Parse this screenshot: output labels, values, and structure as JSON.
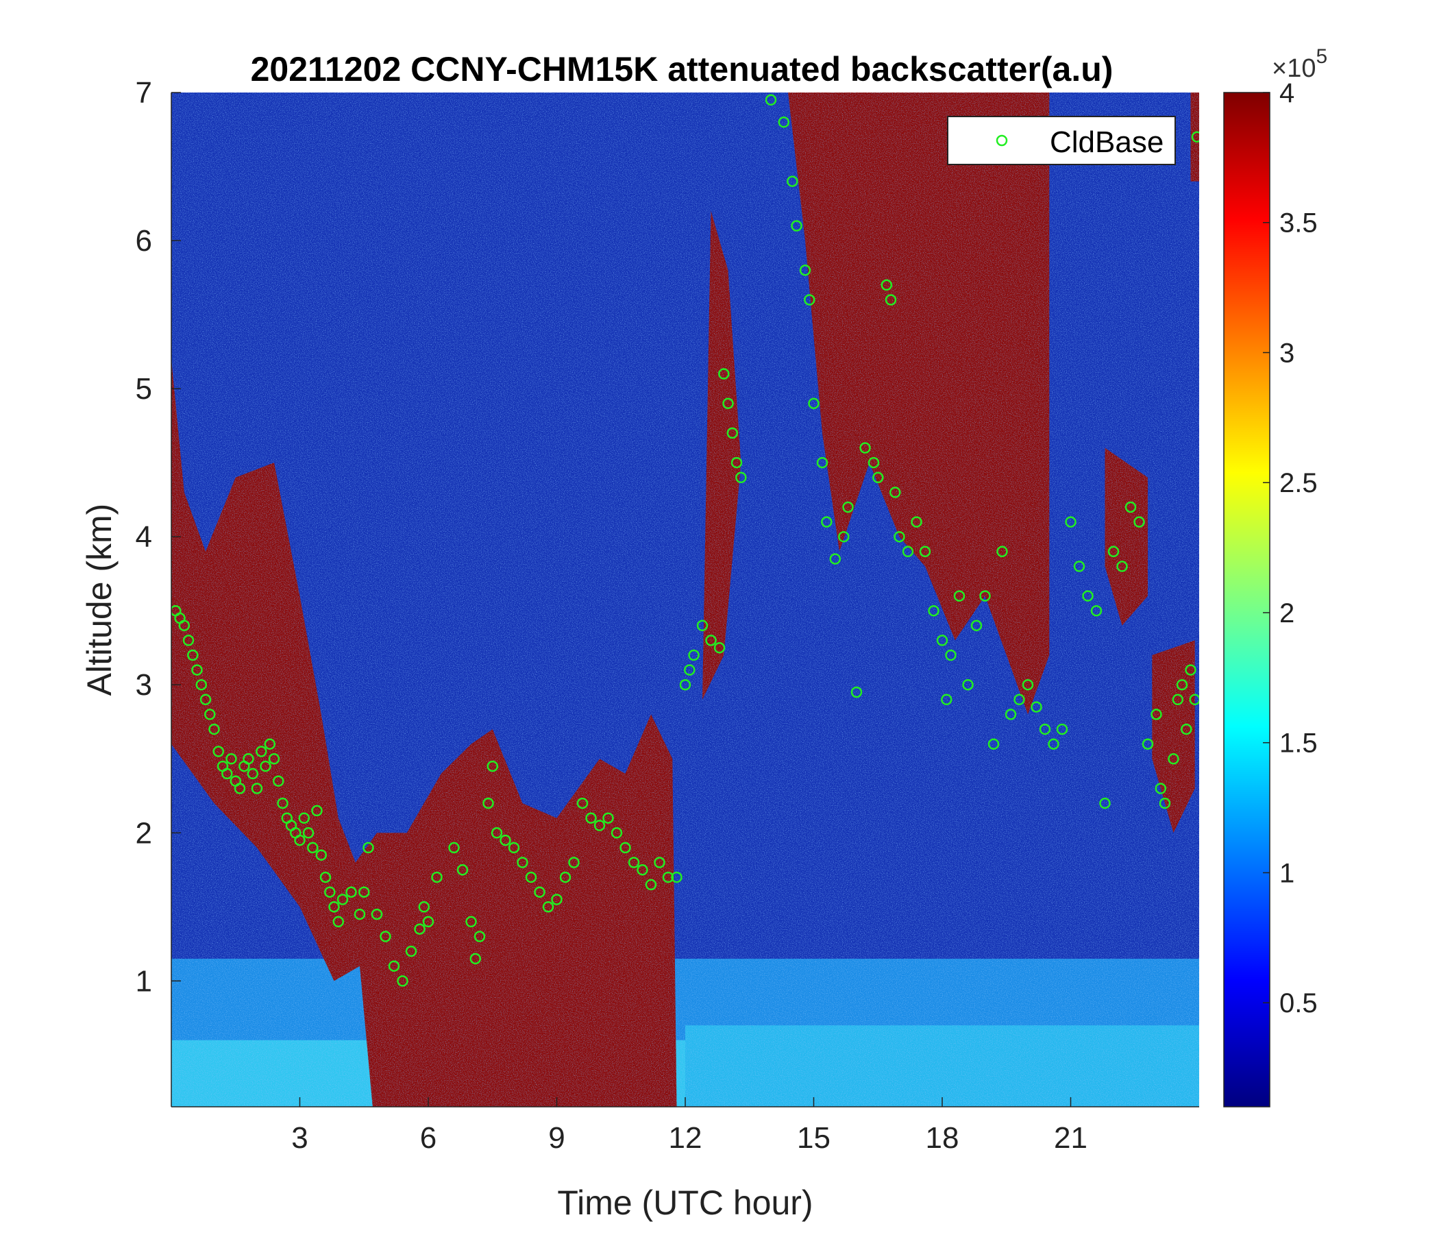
{
  "chart_data": {
    "type": "heatmap",
    "title": "20211202 CCNY-CHM15K attenuated backscatter(a.u)",
    "xlabel": "Time (UTC hour)",
    "ylabel": "Altitude (km)",
    "xlim": [
      0.0,
      24.0
    ],
    "ylim": [
      0.15,
      7.0
    ],
    "x_ticks": [
      3,
      6,
      9,
      12,
      15,
      18,
      21
    ],
    "x_tick_labels": [
      "3",
      "6",
      "9",
      "12",
      "15",
      "18",
      "21"
    ],
    "y_ticks": [
      1,
      2,
      3,
      4,
      5,
      6,
      7
    ],
    "y_tick_labels": [
      "1",
      "2",
      "3",
      "4",
      "5",
      "6",
      "7"
    ],
    "colorbar": {
      "colormap": "jet",
      "clim": [
        0.1,
        4.0
      ],
      "ticks": [
        0.5,
        1,
        1.5,
        2,
        2.5,
        3,
        3.5,
        4
      ],
      "tick_labels": [
        "0.5",
        "1",
        "1.5",
        "2",
        "2.5",
        "3",
        "3.5",
        "4"
      ],
      "multiplier_prefix": "×10",
      "multiplier_exponent": "5"
    },
    "legend": {
      "placement": "top-right",
      "entries": [
        {
          "label": "CldBase",
          "marker": "circle",
          "color": "#22ee22"
        }
      ]
    },
    "series": [
      {
        "name": "CldBase",
        "marker": "o",
        "color": "#22ee22",
        "points": [
          [
            0.1,
            3.5
          ],
          [
            0.2,
            3.45
          ],
          [
            0.3,
            3.4
          ],
          [
            0.4,
            3.3
          ],
          [
            0.5,
            3.2
          ],
          [
            0.6,
            3.1
          ],
          [
            0.7,
            3.0
          ],
          [
            0.8,
            2.9
          ],
          [
            0.9,
            2.8
          ],
          [
            1.0,
            2.7
          ],
          [
            1.1,
            2.55
          ],
          [
            1.2,
            2.45
          ],
          [
            1.3,
            2.4
          ],
          [
            1.4,
            2.5
          ],
          [
            1.5,
            2.35
          ],
          [
            1.6,
            2.3
          ],
          [
            1.7,
            2.45
          ],
          [
            1.8,
            2.5
          ],
          [
            1.9,
            2.4
          ],
          [
            2.0,
            2.3
          ],
          [
            2.1,
            2.55
          ],
          [
            2.2,
            2.45
          ],
          [
            2.3,
            2.6
          ],
          [
            2.4,
            2.5
          ],
          [
            2.5,
            2.35
          ],
          [
            2.6,
            2.2
          ],
          [
            2.7,
            2.1
          ],
          [
            2.8,
            2.05
          ],
          [
            2.9,
            2.0
          ],
          [
            3.0,
            1.95
          ],
          [
            3.1,
            2.1
          ],
          [
            3.2,
            2.0
          ],
          [
            3.3,
            1.9
          ],
          [
            3.4,
            2.15
          ],
          [
            3.5,
            1.85
          ],
          [
            3.6,
            1.7
          ],
          [
            3.7,
            1.6
          ],
          [
            3.8,
            1.5
          ],
          [
            3.9,
            1.4
          ],
          [
            4.0,
            1.55
          ],
          [
            4.2,
            1.6
          ],
          [
            4.4,
            1.45
          ],
          [
            4.5,
            1.6
          ],
          [
            4.6,
            1.9
          ],
          [
            4.8,
            1.45
          ],
          [
            5.0,
            1.3
          ],
          [
            5.2,
            1.1
          ],
          [
            5.4,
            1.0
          ],
          [
            5.6,
            1.2
          ],
          [
            5.8,
            1.35
          ],
          [
            5.9,
            1.5
          ],
          [
            6.0,
            1.4
          ],
          [
            6.2,
            1.7
          ],
          [
            6.6,
            1.9
          ],
          [
            6.8,
            1.75
          ],
          [
            7.0,
            1.4
          ],
          [
            7.1,
            1.15
          ],
          [
            7.2,
            1.3
          ],
          [
            7.4,
            2.2
          ],
          [
            7.5,
            2.45
          ],
          [
            7.6,
            2.0
          ],
          [
            7.8,
            1.95
          ],
          [
            8.0,
            1.9
          ],
          [
            8.2,
            1.8
          ],
          [
            8.4,
            1.7
          ],
          [
            8.6,
            1.6
          ],
          [
            8.8,
            1.5
          ],
          [
            9.0,
            1.55
          ],
          [
            9.2,
            1.7
          ],
          [
            9.4,
            1.8
          ],
          [
            9.6,
            2.2
          ],
          [
            9.8,
            2.1
          ],
          [
            10.0,
            2.05
          ],
          [
            10.2,
            2.1
          ],
          [
            10.4,
            2.0
          ],
          [
            10.6,
            1.9
          ],
          [
            10.8,
            1.8
          ],
          [
            11.0,
            1.75
          ],
          [
            11.2,
            1.65
          ],
          [
            11.4,
            1.8
          ],
          [
            11.6,
            1.7
          ],
          [
            11.8,
            1.7
          ],
          [
            12.0,
            3.0
          ],
          [
            12.1,
            3.1
          ],
          [
            12.2,
            3.2
          ],
          [
            12.4,
            3.4
          ],
          [
            12.6,
            3.3
          ],
          [
            12.8,
            3.25
          ],
          [
            12.9,
            5.1
          ],
          [
            13.0,
            4.9
          ],
          [
            13.1,
            4.7
          ],
          [
            13.2,
            4.5
          ],
          [
            13.3,
            4.4
          ],
          [
            14.0,
            6.95
          ],
          [
            14.3,
            6.8
          ],
          [
            14.5,
            6.4
          ],
          [
            14.6,
            6.1
          ],
          [
            14.8,
            5.8
          ],
          [
            14.9,
            5.6
          ],
          [
            15.0,
            4.9
          ],
          [
            15.2,
            4.5
          ],
          [
            15.3,
            4.1
          ],
          [
            15.5,
            3.85
          ],
          [
            15.7,
            4.0
          ],
          [
            15.8,
            4.2
          ],
          [
            16.0,
            2.95
          ],
          [
            16.2,
            4.6
          ],
          [
            16.4,
            4.5
          ],
          [
            16.5,
            4.4
          ],
          [
            16.7,
            5.7
          ],
          [
            16.8,
            5.6
          ],
          [
            16.9,
            4.3
          ],
          [
            17.0,
            4.0
          ],
          [
            17.2,
            3.9
          ],
          [
            17.4,
            4.1
          ],
          [
            17.6,
            3.9
          ],
          [
            17.8,
            3.5
          ],
          [
            18.0,
            3.3
          ],
          [
            18.1,
            2.9
          ],
          [
            18.2,
            3.2
          ],
          [
            18.4,
            3.6
          ],
          [
            18.6,
            3.0
          ],
          [
            18.8,
            3.4
          ],
          [
            19.0,
            3.6
          ],
          [
            19.2,
            2.6
          ],
          [
            19.4,
            3.9
          ],
          [
            19.6,
            2.8
          ],
          [
            19.8,
            2.9
          ],
          [
            20.0,
            3.0
          ],
          [
            20.2,
            2.85
          ],
          [
            20.4,
            2.7
          ],
          [
            20.6,
            2.6
          ],
          [
            20.8,
            2.7
          ],
          [
            21.0,
            4.1
          ],
          [
            21.2,
            3.8
          ],
          [
            21.4,
            3.6
          ],
          [
            21.6,
            3.5
          ],
          [
            21.8,
            2.2
          ],
          [
            22.0,
            3.9
          ],
          [
            22.2,
            3.8
          ],
          [
            22.4,
            4.2
          ],
          [
            22.6,
            4.1
          ],
          [
            22.8,
            2.6
          ],
          [
            23.0,
            2.8
          ],
          [
            23.1,
            2.3
          ],
          [
            23.2,
            2.2
          ],
          [
            23.4,
            2.5
          ],
          [
            23.5,
            2.9
          ],
          [
            23.6,
            3.0
          ],
          [
            23.7,
            2.7
          ],
          [
            23.8,
            3.1
          ],
          [
            23.9,
            2.9
          ],
          [
            23.95,
            6.7
          ]
        ]
      }
    ],
    "notes": []
  }
}
